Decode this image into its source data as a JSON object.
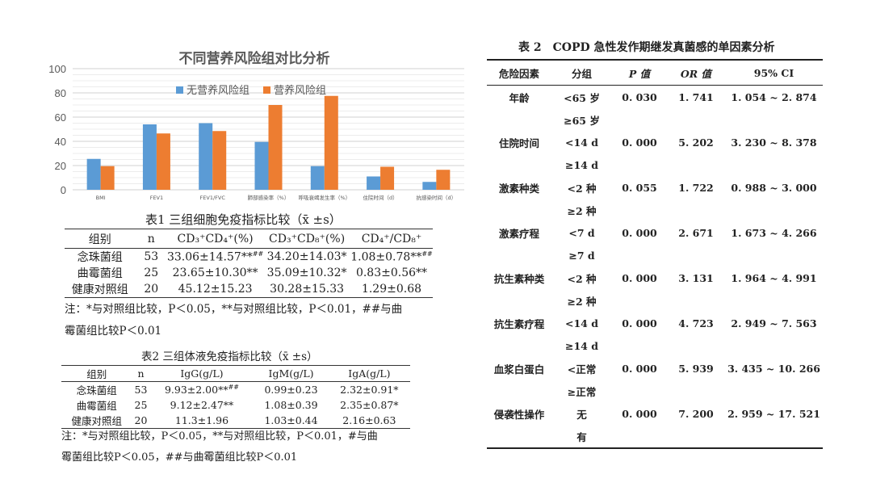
{
  "chart_data": {
    "type": "bar",
    "title": "不同营养风险组对比分析",
    "categories": [
      "BMI",
      "FEV1",
      "FEV1/FVC",
      "肺部感染率（%）",
      "呼吸衰竭发生率（%）",
      "住院时间（d）",
      "抗感染时间（d）"
    ],
    "series": [
      {
        "name": "无营养风险组",
        "color": "#5b9bd5",
        "values": [
          25.5,
          54,
          55,
          39.5,
          19.5,
          11,
          6.5
        ]
      },
      {
        "name": "营养风险组",
        "color": "#ed7d31",
        "values": [
          19.5,
          46.5,
          48.5,
          70,
          77.5,
          19,
          16.5
        ]
      }
    ],
    "ylim": [
      0,
      100
    ],
    "yticks": [
      0,
      20,
      40,
      60,
      80,
      100
    ],
    "grid": true,
    "legend": "top-center"
  },
  "table1": {
    "title": "表1 三组细胞免疫指标比较（x̄ ±s）",
    "headers": [
      "组别",
      "n",
      "CD₃⁺CD₄⁺(%)",
      "CD₃⁺CD₈⁺(%)",
      "CD₄⁺/CD₈⁺"
    ],
    "rows": [
      [
        {
          "v": "念珠菌组"
        },
        {
          "v": "53"
        },
        {
          "v": "33.06±14.57**",
          "s": "##"
        },
        {
          "v": "34.20±14.03*"
        },
        {
          "v": "1.08±0.78**",
          "s": "##"
        }
      ],
      [
        {
          "v": "曲霉菌组"
        },
        {
          "v": "25"
        },
        {
          "v": "23.65±10.30**"
        },
        {
          "v": "35.09±10.32*"
        },
        {
          "v": "0.83±0.56**"
        }
      ],
      [
        {
          "v": "健康对照组"
        },
        {
          "v": "20"
        },
        {
          "v": "45.12±15.23"
        },
        {
          "v": "30.28±15.33"
        },
        {
          "v": "1.29±0.68"
        }
      ]
    ],
    "note_line1": "注：*与对照组比较，P＜0.05，**与对照组比较，P＜0.01，##与曲",
    "note_line2": "霉菌组比较P＜0.01"
  },
  "table2": {
    "title": "表2 三组体液免疫指标比较（x̄ ±s）",
    "headers": [
      "组别",
      "n",
      "IgG(g/L)",
      "IgM(g/L)",
      "IgA(g/L)"
    ],
    "rows": [
      [
        {
          "v": "念珠菌组"
        },
        {
          "v": "53"
        },
        {
          "v": "9.93±2.00**",
          "s": "##"
        },
        {
          "v": "0.99±0.23"
        },
        {
          "v": "2.32±0.91*"
        }
      ],
      [
        {
          "v": "曲霉菌组"
        },
        {
          "v": "25"
        },
        {
          "v": "9.12±2.47**"
        },
        {
          "v": "1.08±0.39"
        },
        {
          "v": "2.35±0.87*"
        }
      ],
      [
        {
          "v": "健康对照组"
        },
        {
          "v": "20"
        },
        {
          "v": "11.3±1.96"
        },
        {
          "v": "1.03±0.44"
        },
        {
          "v": "2.16±0.63"
        }
      ]
    ],
    "note_line1": "注：*与对照组比较，P＜0.05，**与对照组比较，P＜0.01，#与曲",
    "note_line2": "霉菌组比较P＜0.05，##与曲霉菌组比较P＜0.01"
  },
  "table3": {
    "title": "表 2　COPD 急性发作期继发真菌感的单因素分析",
    "headers": [
      "危险因素",
      "分组",
      "P 值",
      "OR 值",
      "95% CI"
    ],
    "rows": [
      [
        "年龄",
        "<65 岁",
        "0. 030",
        "1. 741",
        "1. 054 ~ 2. 874"
      ],
      [
        "",
        "≥65 岁",
        "",
        "",
        ""
      ],
      [
        "住院时间",
        "<14 d",
        "0. 000",
        "5. 202",
        "3. 230 ~ 8. 378"
      ],
      [
        "",
        "≥14 d",
        "",
        "",
        ""
      ],
      [
        "激素种类",
        "<2 种",
        "0. 055",
        "1. 722",
        "0. 988 ~ 3. 000"
      ],
      [
        "",
        "≥2 种",
        "",
        "",
        ""
      ],
      [
        "激素疗程",
        "<7 d",
        "0. 000",
        "2. 671",
        "1. 673 ~ 4. 266"
      ],
      [
        "",
        "≥7 d",
        "",
        "",
        ""
      ],
      [
        "抗生素种类",
        "<2 种",
        "0. 000",
        "3. 131",
        "1. 964 ~ 4. 991"
      ],
      [
        "",
        "≥2 种",
        "",
        "",
        ""
      ],
      [
        "抗生素疗程",
        "<14 d",
        "0. 000",
        "4. 723",
        "2. 949 ~ 7. 563"
      ],
      [
        "",
        "≥14 d",
        "",
        "",
        ""
      ],
      [
        "血浆白蛋白",
        "<正常",
        "0. 000",
        "5. 939",
        "3. 435 ~ 10. 266"
      ],
      [
        "",
        "≥正常",
        "",
        "",
        ""
      ],
      [
        "侵袭性操作",
        "无",
        "0. 000",
        "7. 200",
        "2. 959 ~ 17. 521"
      ],
      [
        "",
        "有",
        "",
        "",
        ""
      ]
    ]
  }
}
